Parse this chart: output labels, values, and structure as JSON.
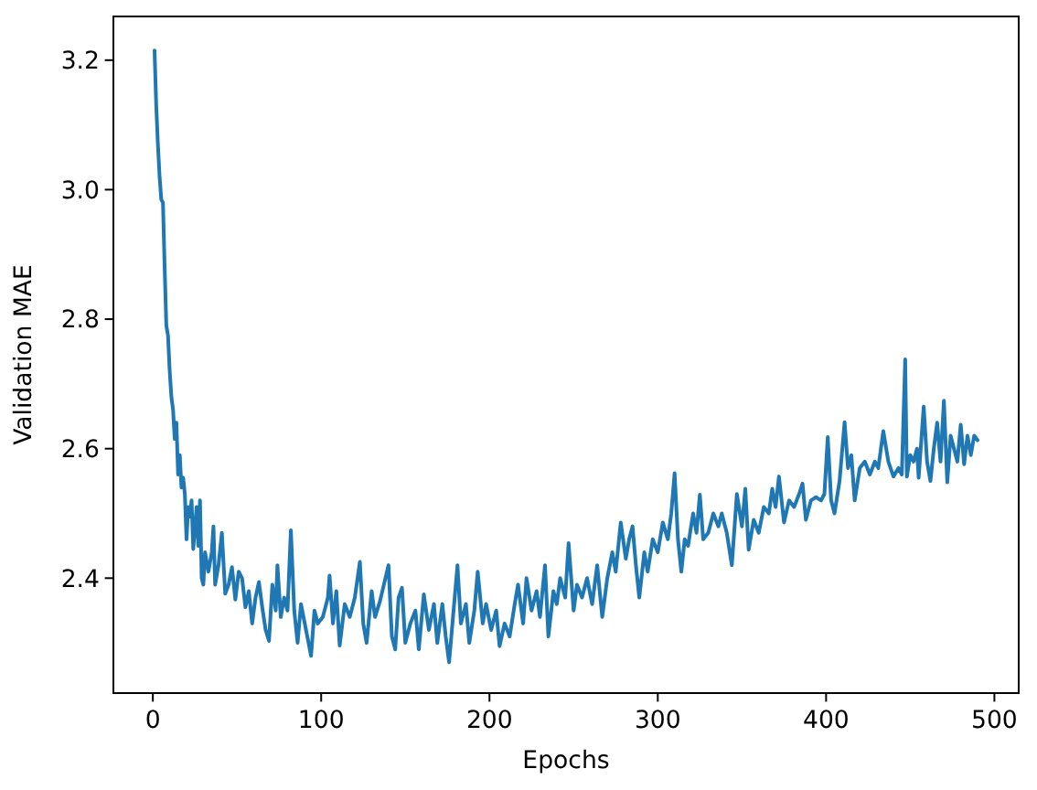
{
  "chart_data": {
    "type": "line",
    "xlabel": "Epochs",
    "ylabel": "Validation MAE",
    "x": [
      1,
      2,
      3,
      4,
      5,
      6,
      7,
      8,
      9,
      10,
      11,
      12,
      13,
      14,
      15,
      16,
      17,
      18,
      19,
      20,
      21,
      22,
      23,
      24,
      26,
      27,
      28,
      29,
      30,
      31,
      33,
      35,
      36,
      37,
      39,
      41,
      43,
      45,
      47,
      49,
      51,
      53,
      55,
      57,
      59,
      61,
      63,
      65,
      67,
      69,
      71,
      73,
      74,
      76,
      78,
      80,
      82,
      84,
      86,
      88,
      91,
      94,
      96,
      98,
      101,
      104,
      105,
      107,
      109,
      111,
      114,
      117,
      120,
      123,
      125,
      127,
      130,
      132,
      135,
      140,
      142,
      144,
      146,
      148,
      150,
      153,
      156,
      158,
      161,
      164,
      167,
      169,
      172,
      174,
      176,
      178,
      181,
      183,
      186,
      188,
      191,
      193,
      196,
      198,
      201,
      204,
      206,
      209,
      212,
      215,
      217,
      220,
      222,
      225,
      228,
      230,
      233,
      235,
      238,
      240,
      242,
      245,
      247,
      250,
      252,
      255,
      258,
      261,
      264,
      267,
      270,
      273,
      275,
      278,
      281,
      283,
      285,
      287,
      289,
      292,
      294,
      297,
      300,
      303,
      306,
      308,
      310,
      312,
      314,
      316,
      318,
      321,
      323,
      325,
      327,
      330,
      333,
      336,
      338,
      341,
      344,
      347,
      350,
      352,
      354,
      357,
      360,
      363,
      366,
      368,
      370,
      372,
      375,
      378,
      381,
      384,
      386,
      388,
      391,
      394,
      397,
      399,
      401,
      403,
      405,
      408,
      411,
      413,
      415,
      417,
      420,
      423,
      426,
      429,
      431,
      434,
      437,
      440,
      443,
      445,
      447,
      448,
      450,
      452,
      454,
      455,
      458,
      460,
      462,
      464,
      466,
      468,
      470,
      472,
      474,
      476,
      478,
      480,
      482,
      484,
      486,
      488,
      490
    ],
    "series": [
      {
        "color": "#1f77b4",
        "values": [
          3.215,
          3.13,
          3.07,
          3.02,
          2.985,
          2.98,
          2.88,
          2.79,
          2.775,
          2.72,
          2.68,
          2.66,
          2.615,
          2.64,
          2.56,
          2.59,
          2.54,
          2.555,
          2.53,
          2.46,
          2.51,
          2.495,
          2.52,
          2.445,
          2.51,
          2.45,
          2.52,
          2.4,
          2.39,
          2.44,
          2.41,
          2.44,
          2.48,
          2.39,
          2.42,
          2.47,
          2.376,
          2.39,
          2.417,
          2.367,
          2.41,
          2.4,
          2.355,
          2.38,
          2.33,
          2.37,
          2.394,
          2.355,
          2.32,
          2.303,
          2.39,
          2.35,
          2.42,
          2.34,
          2.37,
          2.35,
          2.474,
          2.35,
          2.3,
          2.36,
          2.32,
          2.28,
          2.35,
          2.33,
          2.34,
          2.37,
          2.404,
          2.33,
          2.38,
          2.296,
          2.36,
          2.34,
          2.37,
          2.425,
          2.33,
          2.3,
          2.38,
          2.34,
          2.365,
          2.42,
          2.31,
          2.29,
          2.37,
          2.385,
          2.3,
          2.33,
          2.35,
          2.29,
          2.375,
          2.32,
          2.36,
          2.3,
          2.36,
          2.31,
          2.27,
          2.33,
          2.42,
          2.33,
          2.36,
          2.3,
          2.35,
          2.41,
          2.33,
          2.36,
          2.32,
          2.35,
          2.295,
          2.33,
          2.31,
          2.36,
          2.39,
          2.33,
          2.4,
          2.35,
          2.38,
          2.34,
          2.42,
          2.31,
          2.38,
          2.36,
          2.4,
          2.37,
          2.454,
          2.35,
          2.39,
          2.37,
          2.4,
          2.36,
          2.42,
          2.34,
          2.4,
          2.44,
          2.41,
          2.486,
          2.43,
          2.46,
          2.48,
          2.42,
          2.37,
          2.44,
          2.41,
          2.46,
          2.44,
          2.486,
          2.46,
          2.5,
          2.562,
          2.46,
          2.41,
          2.46,
          2.45,
          2.5,
          2.47,
          2.529,
          2.46,
          2.47,
          2.5,
          2.48,
          2.5,
          2.47,
          2.42,
          2.53,
          2.48,
          2.538,
          2.444,
          2.49,
          2.47,
          2.51,
          2.5,
          2.538,
          2.51,
          2.557,
          2.486,
          2.52,
          2.51,
          2.53,
          2.546,
          2.49,
          2.52,
          2.525,
          2.52,
          2.53,
          2.618,
          2.52,
          2.5,
          2.55,
          2.641,
          2.57,
          2.59,
          2.52,
          2.57,
          2.58,
          2.56,
          2.58,
          2.57,
          2.627,
          2.58,
          2.557,
          2.57,
          2.56,
          2.738,
          2.557,
          2.59,
          2.58,
          2.6,
          2.555,
          2.665,
          2.58,
          2.55,
          2.6,
          2.64,
          2.58,
          2.674,
          2.548,
          2.62,
          2.6,
          2.58,
          2.637,
          2.576,
          2.62,
          2.59,
          2.62,
          2.613
        ]
      }
    ],
    "xlim": [
      -23.45,
      514.45
    ],
    "ylim": [
      2.2225,
      3.2675
    ],
    "xticks": [
      0,
      100,
      200,
      300,
      400,
      500
    ],
    "yticks": [
      2.4,
      2.6,
      2.8,
      {
        "value": 3,
        "label": "3.0"
      },
      3.2
    ]
  }
}
